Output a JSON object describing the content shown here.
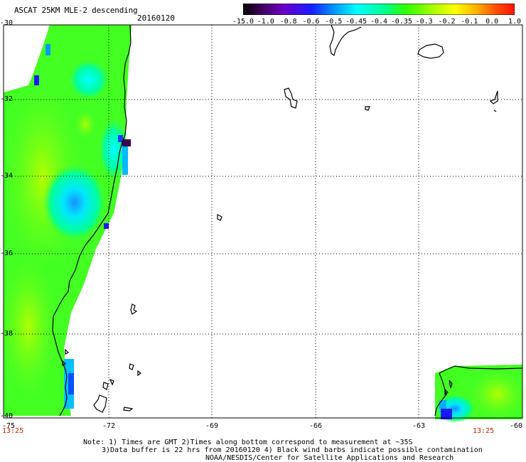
{
  "header": {
    "title": "ASCAT 25KM MLE-2 descending",
    "date": "20160120"
  },
  "colorbar": {
    "labels": [
      "-15.0",
      "-1.0",
      "-0.8",
      "-0.6",
      "-0.5",
      "-0.45",
      "-0.4",
      "-0.35",
      "-0.3",
      "-0.2",
      "-0.1",
      "0.0",
      "1.0"
    ],
    "colors": [
      "#ffffff",
      "#3c0050",
      "#6a00b4",
      "#3a00ff",
      "#006aff",
      "#00b4ff",
      "#00ffff",
      "#00ff7a",
      "#4aff00",
      "#b4ff00",
      "#ffff00",
      "#ffb400",
      "#ff5a00",
      "#ff1e00"
    ]
  },
  "axes": {
    "lat_labels": [
      "-30",
      "-32",
      "-34",
      "-36",
      "-38",
      "-40"
    ],
    "lon_labels": [
      "-75",
      "-72",
      "-69",
      "-66",
      "-63",
      "-60"
    ]
  },
  "times": {
    "left": "13:25",
    "right": "13:25"
  },
  "notes": {
    "line1": "Note: 1) Times are GMT 2)Times along bottom correspond to measurement at ~35S",
    "line2": "3)Data buffer is 22 hrs from 20160120 4) Black wind barbs indicate possible contamination",
    "line3": "NOAA/NESDIS/Center for Satellite Applications and Research"
  }
}
